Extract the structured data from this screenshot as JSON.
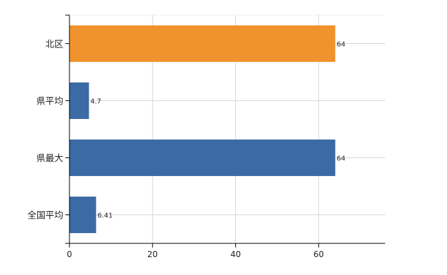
{
  "chart_data": {
    "type": "bar",
    "orientation": "horizontal",
    "title": "",
    "xlabel": "",
    "ylabel": "",
    "categories": [
      "北区",
      "県平均",
      "県最大",
      "全国平均"
    ],
    "values": [
      64,
      4.7,
      64,
      6.41
    ],
    "value_labels": [
      "64",
      "4.7",
      "64",
      "6.41"
    ],
    "bar_colors": [
      "#f0922e",
      "#3b6aa5",
      "#3b6aa5",
      "#3b6aa5"
    ],
    "xlim": [
      0,
      76
    ],
    "x_ticks": [
      0,
      20,
      40,
      60
    ],
    "x_tick_labels": [
      "0",
      "20",
      "40",
      "60"
    ],
    "grid": true,
    "legend": "none"
  }
}
